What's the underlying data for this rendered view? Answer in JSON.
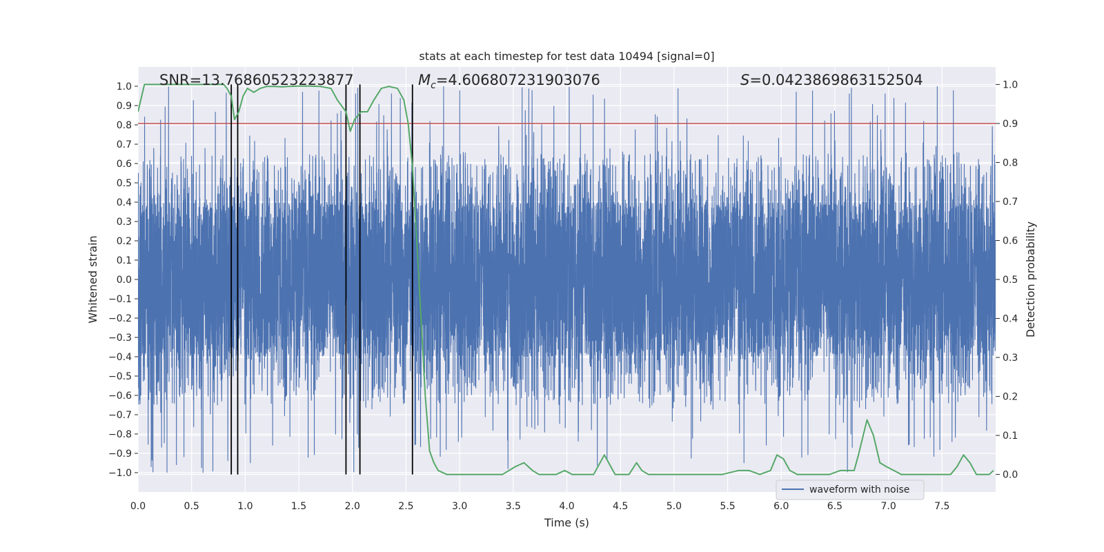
{
  "chart_data": {
    "type": "line",
    "title": "stats at each timestep for test data 10494 [signal=0]",
    "xlabel": "Time (s)",
    "ylabel_left": "Whitened strain",
    "ylabel_right": "Detection probability",
    "xlim": [
      0,
      8
    ],
    "ylim_left": [
      -1.1,
      1.1
    ],
    "ylim_right": [
      -0.045,
      1.045
    ],
    "x_ticks": [
      0.0,
      0.5,
      1.0,
      1.5,
      2.0,
      2.5,
      3.0,
      3.5,
      4.0,
      4.5,
      5.0,
      5.5,
      6.0,
      6.5,
      7.0,
      7.5
    ],
    "x_tick_labels": [
      "0.0",
      "0.5",
      "1.0",
      "1.5",
      "2.0",
      "2.5",
      "3.0",
      "3.5",
      "4.0",
      "4.5",
      "5.0",
      "5.5",
      "6.0",
      "6.5",
      "7.0",
      "7.5"
    ],
    "y_left_ticks": [
      1.0,
      0.9,
      0.8,
      0.7,
      0.6,
      0.5,
      0.4,
      0.3,
      0.2,
      0.1,
      0.0,
      -0.1,
      -0.2,
      -0.3,
      -0.4,
      -0.5,
      -0.6,
      -0.7,
      -0.8,
      -0.9,
      -1.0
    ],
    "y_left_tick_labels": [
      "1.0",
      "0.9",
      "0.8",
      "0.7",
      "0.6",
      "0.5",
      "0.4",
      "0.3",
      "0.2",
      "0.1",
      "0.0",
      "−0.1",
      "−0.2",
      "−0.3",
      "−0.4",
      "−0.5",
      "−0.6",
      "−0.7",
      "−0.8",
      "−0.9",
      "−1.0"
    ],
    "y_right_ticks": [
      0.0,
      0.1,
      0.2,
      0.3,
      0.4,
      0.5,
      0.6,
      0.7,
      0.8,
      0.9,
      1.0
    ],
    "y_right_tick_labels": [
      "0.0",
      "0.1",
      "0.2",
      "0.3",
      "0.4",
      "0.5",
      "0.6",
      "0.7",
      "0.8",
      "0.9",
      "1.0"
    ],
    "annotations": {
      "snr": "SNR=13.76860523223877",
      "mc_symbol": "M",
      "mc_sub": "c",
      "mc_value": "=4.606807231903076",
      "s_symbol": "S",
      "s_value": "=0.0423869863152504"
    },
    "threshold": {
      "value": 0.9,
      "axis": "right",
      "color": "#c44e52"
    },
    "vertical_markers": [
      0.87,
      0.93,
      1.94,
      2.07,
      2.56
    ],
    "waveform": {
      "name": "waveform with noise",
      "color": "#4c72b0",
      "duration": 8.0,
      "samples": 8192,
      "core_amplitude": 0.4,
      "peak_max": 1.0
    },
    "detection_probability": {
      "name": "detection probability",
      "color": "#55a868",
      "x": [
        0.0,
        0.06,
        0.12,
        0.2,
        0.3,
        0.4,
        0.5,
        0.6,
        0.7,
        0.8,
        0.83,
        0.87,
        0.9,
        0.94,
        0.98,
        1.02,
        1.08,
        1.14,
        1.2,
        1.27,
        1.34,
        1.4,
        1.5,
        1.6,
        1.7,
        1.8,
        1.86,
        1.94,
        1.98,
        2.02,
        2.08,
        2.14,
        2.2,
        2.27,
        2.34,
        2.42,
        2.48,
        2.52,
        2.56,
        2.6,
        2.64,
        2.68,
        2.72,
        2.76,
        2.8,
        2.88,
        2.96,
        3.05,
        3.2,
        3.4,
        3.52,
        3.6,
        3.68,
        3.74,
        3.82,
        3.9,
        3.98,
        4.05,
        4.15,
        4.25,
        4.35,
        4.45,
        4.52,
        4.58,
        4.65,
        4.7,
        4.76,
        4.84,
        4.92,
        5.0,
        5.1,
        5.2,
        5.3,
        5.45,
        5.6,
        5.7,
        5.8,
        5.9,
        5.96,
        6.02,
        6.08,
        6.15,
        6.3,
        6.45,
        6.55,
        6.6,
        6.68,
        6.72,
        6.8,
        6.86,
        6.92,
        6.98,
        7.05,
        7.12,
        7.2,
        7.3,
        7.4,
        7.5,
        7.58,
        7.64,
        7.7,
        7.76,
        7.82,
        7.88,
        7.94,
        7.98
      ],
      "y": [
        0.93,
        1.0,
        1.0,
        1.0,
        1.0,
        1.0,
        1.0,
        1.0,
        1.0,
        1.0,
        0.99,
        0.97,
        0.91,
        0.93,
        0.97,
        0.99,
        0.98,
        0.99,
        0.995,
        0.995,
        0.994,
        0.995,
        0.996,
        0.996,
        0.995,
        0.99,
        0.96,
        0.93,
        0.88,
        0.91,
        0.93,
        0.93,
        0.96,
        0.99,
        0.995,
        0.99,
        0.96,
        0.9,
        0.79,
        0.6,
        0.4,
        0.2,
        0.06,
        0.03,
        0.01,
        0.0,
        0.0,
        0.0,
        0.0,
        0.0,
        0.02,
        0.03,
        0.01,
        0.0,
        0.0,
        0.0,
        0.01,
        0.0,
        0.0,
        0.0,
        0.05,
        0.0,
        0.0,
        0.0,
        0.03,
        0.01,
        0.0,
        0.0,
        0.0,
        0.0,
        0.0,
        0.0,
        0.0,
        0.0,
        0.01,
        0.01,
        0.0,
        0.01,
        0.05,
        0.04,
        0.01,
        0.0,
        0.0,
        0.0,
        0.01,
        0.01,
        0.01,
        0.05,
        0.14,
        0.1,
        0.03,
        0.02,
        0.01,
        0.0,
        0.0,
        0.0,
        0.0,
        0.0,
        0.0,
        0.02,
        0.05,
        0.03,
        0.0,
        0.0,
        0.0,
        0.01
      ]
    },
    "legend": {
      "entries": [
        "waveform with noise"
      ],
      "placement": "lower-right"
    }
  }
}
